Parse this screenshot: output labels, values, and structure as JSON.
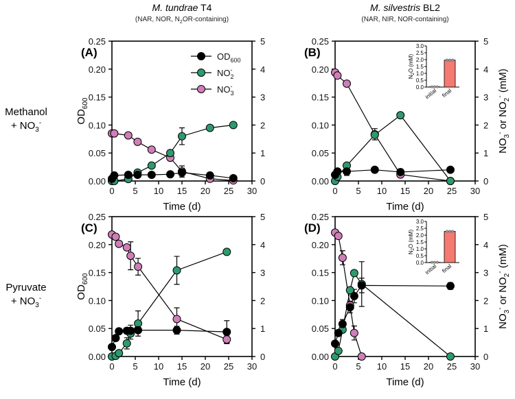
{
  "titles": [
    {
      "species": "M. tundrae",
      "strain": "T4",
      "sub": "(NAR, NOR, N",
      "sub2": "OR-containing)"
    },
    {
      "species": "M. silvestris",
      "strain": "BL2",
      "sub": "(NAR, NIR, NOR-containing)"
    }
  ],
  "rows": [
    {
      "label1": "Methanol",
      "label2": "+ NO"
    },
    {
      "label1": "Pyruvate",
      "label2": "+ NO"
    }
  ],
  "colors": {
    "OD": "#000000",
    "NO2": "#2e9a6e",
    "NO3": "#cf7fb8",
    "bar": "#f47a72"
  },
  "chart_data": [
    {
      "type": "line",
      "panel": "(A)",
      "xlabel": "Time (d)",
      "ylabel": "OD600",
      "y2label": "NO3- or NO2- (mM)",
      "xlim": [
        0,
        30
      ],
      "ylim": [
        0,
        0.25
      ],
      "y2lim": [
        0,
        5
      ],
      "xticks": [
        "0",
        "5",
        "10",
        "15",
        "20",
        "25",
        "30"
      ],
      "yticks": [
        "0.00",
        "0.05",
        "0.10",
        "0.15",
        "0.20",
        "0.25"
      ],
      "y2ticks": [
        "0",
        "1",
        "2",
        "3",
        "4",
        "5"
      ],
      "legend": {
        "position": "top-right",
        "entries": [
          "OD",
          "NO",
          "NO"
        ]
      },
      "series": [
        {
          "name": "OD600",
          "axis": "left",
          "x": [
            0,
            0.5,
            3.5,
            5.5,
            8.5,
            12.5,
            15,
            21,
            26
          ],
          "y": [
            0.004,
            0.01,
            0.011,
            0.011,
            0.011,
            0.012,
            0.015,
            0.01,
            0.005
          ],
          "err": [
            0,
            0,
            0,
            0,
            0.004,
            0,
            0.008,
            0,
            0
          ]
        },
        {
          "name": "NO2-",
          "axis": "right",
          "x": [
            0,
            0.5,
            3.5,
            5.5,
            8.5,
            12.5,
            15,
            21,
            26
          ],
          "y": [
            0,
            0,
            0.07,
            0.3,
            0.55,
            1.0,
            1.6,
            1.9,
            2.0
          ],
          "err": [
            0,
            0,
            0,
            0,
            0,
            0.1,
            0.3,
            0,
            0
          ]
        },
        {
          "name": "NO3-",
          "axis": "right",
          "x": [
            0,
            0.5,
            3.5,
            5.5,
            8.5,
            12.5,
            15,
            21,
            26
          ],
          "y": [
            1.7,
            1.7,
            1.63,
            1.4,
            1.12,
            0.83,
            0.34,
            0.08,
            0.02
          ],
          "err": [
            0,
            0,
            0,
            0,
            0.05,
            0,
            0.2,
            0,
            0
          ]
        }
      ]
    },
    {
      "type": "line",
      "panel": "(B)",
      "xlabel": "Time (d)",
      "xlim": [
        0,
        30
      ],
      "ylim": [
        0,
        0.25
      ],
      "y2lim": [
        0,
        5
      ],
      "xticks": [
        "0",
        "5",
        "10",
        "15",
        "20",
        "25",
        "30"
      ],
      "yticks": [
        "0.00",
        "0.05",
        "0.10",
        "0.15",
        "0.20",
        "0.25"
      ],
      "y2ticks": [
        "0",
        "1",
        "2",
        "3",
        "4",
        "5"
      ],
      "series": [
        {
          "name": "OD600",
          "axis": "left",
          "x": [
            0,
            0.5,
            2.5,
            8.5,
            14,
            24.7
          ],
          "y": [
            0.011,
            0.017,
            0.017,
            0.02,
            0.016,
            0.02
          ],
          "err": [
            0,
            0,
            0.007,
            0,
            0.005,
            0
          ]
        },
        {
          "name": "NO2-",
          "axis": "right",
          "x": [
            0,
            0.5,
            2.5,
            8.5,
            14,
            24.7
          ],
          "y": [
            0,
            0.15,
            0.55,
            1.65,
            2.35,
            0
          ],
          "err": [
            0,
            0,
            0,
            0.1,
            0,
            0
          ]
        },
        {
          "name": "NO3-",
          "axis": "right",
          "x": [
            0,
            0.5,
            2.5,
            8.5,
            14,
            24.7
          ],
          "y": [
            3.88,
            3.77,
            3.48,
            1.67,
            0.23,
            0
          ],
          "err": [
            0,
            0.1,
            0,
            0.2,
            0.1,
            0
          ]
        }
      ],
      "inset": {
        "type": "bar",
        "ylabel": "N2O (mM)",
        "categories": [
          "initial",
          "final"
        ],
        "values": [
          0.02,
          1.97
        ],
        "ylim": [
          0,
          3
        ],
        "yticks": [
          "0.0",
          "0.5",
          "1.0",
          "1.5",
          "2.0",
          "2.5",
          "3.0"
        ]
      }
    },
    {
      "type": "line",
      "panel": "(C)",
      "xlabel": "Time (d)",
      "xlim": [
        0,
        30
      ],
      "ylim": [
        0,
        0.25
      ],
      "y2lim": [
        0,
        5
      ],
      "xticks": [
        "0",
        "5",
        "10",
        "15",
        "20",
        "25",
        "30"
      ],
      "yticks": [
        "0.00",
        "0.05",
        "0.10",
        "0.15",
        "0.20",
        "0.25"
      ],
      "y2ticks": [
        "0",
        "1",
        "2",
        "3",
        "4",
        "5"
      ],
      "series": [
        {
          "name": "OD600",
          "axis": "left",
          "x": [
            0,
            0.8,
            1.5,
            3.2,
            4,
            5.6,
            13.9,
            24.6
          ],
          "y": [
            0.017,
            0.033,
            0.045,
            0.046,
            0.046,
            0.047,
            0.047,
            0.044
          ],
          "err": [
            0,
            0,
            0.005,
            0.005,
            0.01,
            0.005,
            0.007,
            0.02
          ]
        },
        {
          "name": "NO2-",
          "axis": "right",
          "x": [
            0,
            0.8,
            1.5,
            3.2,
            4,
            5.6,
            13.9,
            24.6
          ],
          "y": [
            0,
            0.02,
            0.12,
            0.47,
            0.82,
            1.18,
            3.08,
            3.74
          ],
          "err": [
            0,
            0,
            0,
            0.2,
            0.2,
            0.45,
            0.5,
            0.1
          ]
        },
        {
          "name": "NO3-",
          "axis": "right",
          "x": [
            0,
            0.8,
            1.5,
            3.2,
            4,
            5.6,
            13.9,
            24.6
          ],
          "y": [
            4.36,
            4.28,
            4.03,
            3.9,
            3.6,
            3.21,
            1.34,
            0.61
          ],
          "err": [
            0,
            0.1,
            0.1,
            0.1,
            0.5,
            0.3,
            0.4,
            0.15
          ]
        }
      ]
    },
    {
      "type": "line",
      "panel": "(D)",
      "xlabel": "Time (d)",
      "xlim": [
        0,
        30
      ],
      "ylim": [
        0,
        0.25
      ],
      "y2lim": [
        0,
        5
      ],
      "xticks": [
        "0",
        "5",
        "10",
        "15",
        "20",
        "25",
        "30"
      ],
      "yticks": [
        "0.00",
        "0.05",
        "0.10",
        "0.15",
        "0.20",
        "0.25"
      ],
      "y2ticks": [
        "0",
        "1",
        "2",
        "3",
        "4",
        "5"
      ],
      "series": [
        {
          "name": "OD600",
          "axis": "left",
          "x": [
            0,
            0.7,
            1.6,
            3.2,
            4.1,
            5.7,
            24.7
          ],
          "y": [
            0.023,
            0.042,
            0.058,
            0.088,
            0.108,
            0.127,
            0.126
          ],
          "err": [
            0,
            0.003,
            0.008,
            0.01,
            0.012,
            0.013,
            0.006
          ]
        },
        {
          "name": "NO2-",
          "axis": "right",
          "x": [
            0,
            0.7,
            1.6,
            3.2,
            4.1,
            5.7,
            24.7
          ],
          "y": [
            0,
            0.2,
            0.96,
            2.37,
            2.98,
            2.59,
            0
          ],
          "err": [
            0,
            0,
            0,
            0.1,
            0,
            0.8,
            0
          ]
        },
        {
          "name": "NO3-",
          "axis": "right",
          "x": [
            0,
            0.7,
            1.6,
            3.2,
            4.1,
            5.7
          ],
          "y": [
            4.43,
            4.31,
            3.53,
            1.83,
            0.84,
            0
          ],
          "err": [
            0,
            0,
            0.25,
            0.15,
            0.25,
            0
          ]
        }
      ],
      "inset": {
        "type": "bar",
        "ylabel": "N2O (mM)",
        "categories": [
          "initial",
          "final"
        ],
        "values": [
          0.02,
          2.28
        ],
        "ylim": [
          0,
          3
        ],
        "yticks": [
          "0.0",
          "0.5",
          "1.0",
          "1.5",
          "2.0",
          "2.5",
          "3.0"
        ]
      }
    }
  ]
}
